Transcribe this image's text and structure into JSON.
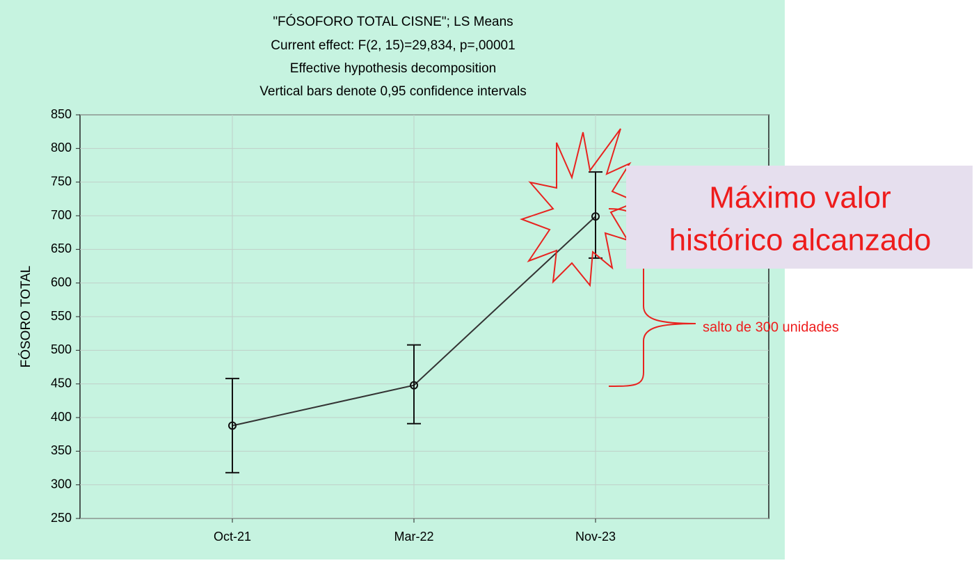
{
  "chart_data": {
    "type": "line",
    "title": "\"FÓSOFORO TOTAL CISNE\"; LS Means",
    "subtitle": [
      "Current effect: F(2, 15)=29,834, p=,00001",
      "Effective hypothesis decomposition",
      "Vertical bars denote 0,95 confidence intervals"
    ],
    "y_label": "FÓSORO TOTAL",
    "categories": [
      "Oct-21",
      "Mar-22",
      "Nov-23"
    ],
    "values": [
      388,
      448,
      699
    ],
    "lower": [
      318,
      391,
      637
    ],
    "upper": [
      458,
      508,
      765
    ],
    "color": "#333333",
    "ylim": [
      250,
      850
    ],
    "yticks": [
      250,
      300,
      350,
      400,
      450,
      500,
      550,
      600,
      650,
      700,
      750,
      800,
      850
    ],
    "grid": true,
    "annotations": [
      "Máximo valor",
      "histórico alcanzado",
      "salto de 300 unidades"
    ]
  }
}
